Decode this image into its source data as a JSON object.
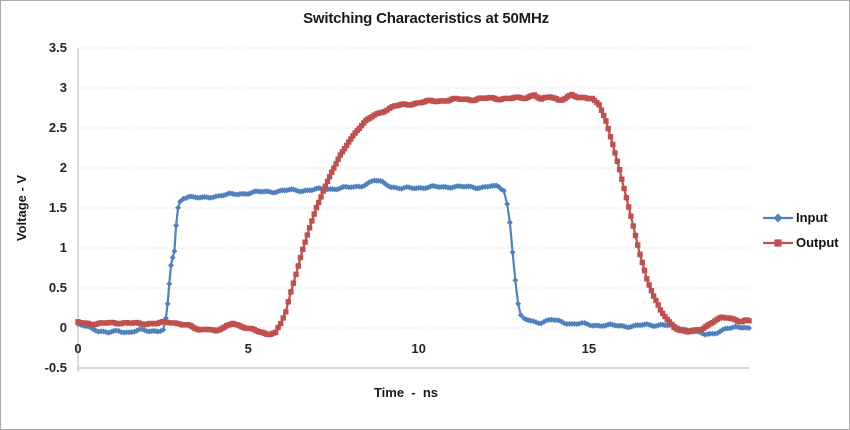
{
  "title": "Switching Characteristics at 50MHz",
  "colors": {
    "input_series": "#4F81BD",
    "output_series": "#C0504D",
    "gridline": "#dcdcdc",
    "axis_line": "#c2c2c2",
    "text": "#1a1a1a",
    "frame_border": "#ababab",
    "background": "#ffffff"
  },
  "legend": {
    "position": "right",
    "entries": [
      {
        "label": "Input",
        "color": "#4F81BD",
        "marker": "diamond"
      },
      {
        "label": "Output",
        "color": "#C0504D",
        "marker": "square"
      }
    ]
  },
  "chart_data": {
    "type": "line",
    "title": "Switching Characteristics at 50MHz",
    "xlabel": "Time  -  ns",
    "ylabel": "Voltage - V",
    "xlim": [
      0,
      19.7
    ],
    "ylim": [
      -0.5,
      3.5
    ],
    "x_ticks": [
      0,
      5,
      10,
      15
    ],
    "y_ticks": [
      3.5,
      3,
      2.5,
      2,
      1.5,
      1,
      0.5,
      0,
      -0.5
    ],
    "grid": "horizontal-dotted",
    "legend_position": "right",
    "series": [
      {
        "name": "Input",
        "color": "#4F81BD",
        "marker": "diamond",
        "points": [
          [
            0.0,
            0.04
          ],
          [
            0.3,
            0.01
          ],
          [
            0.6,
            -0.03
          ],
          [
            0.9,
            -0.06
          ],
          [
            1.2,
            -0.04
          ],
          [
            1.5,
            -0.05
          ],
          [
            1.8,
            -0.03
          ],
          [
            2.1,
            -0.04
          ],
          [
            2.35,
            -0.03
          ],
          [
            2.5,
            -0.02
          ],
          [
            2.58,
            0.12
          ],
          [
            2.63,
            0.3
          ],
          [
            2.68,
            0.55
          ],
          [
            2.73,
            0.78
          ],
          [
            2.78,
            0.88
          ],
          [
            2.83,
            0.96
          ],
          [
            2.88,
            1.28
          ],
          [
            2.94,
            1.5
          ],
          [
            3.0,
            1.58
          ],
          [
            3.1,
            1.63
          ],
          [
            3.25,
            1.65
          ],
          [
            3.45,
            1.63
          ],
          [
            3.65,
            1.62
          ],
          [
            3.9,
            1.64
          ],
          [
            4.2,
            1.66
          ],
          [
            4.6,
            1.67
          ],
          [
            5.0,
            1.69
          ],
          [
            5.4,
            1.7
          ],
          [
            5.8,
            1.71
          ],
          [
            6.2,
            1.72
          ],
          [
            6.6,
            1.72
          ],
          [
            7.0,
            1.73
          ],
          [
            7.4,
            1.74
          ],
          [
            7.8,
            1.75
          ],
          [
            8.1,
            1.76
          ],
          [
            8.4,
            1.79
          ],
          [
            8.7,
            1.84
          ],
          [
            8.95,
            1.82
          ],
          [
            9.2,
            1.77
          ],
          [
            9.5,
            1.74
          ],
          [
            9.8,
            1.75
          ],
          [
            10.2,
            1.76
          ],
          [
            10.6,
            1.76
          ],
          [
            11.0,
            1.77
          ],
          [
            11.4,
            1.76
          ],
          [
            11.8,
            1.76
          ],
          [
            12.1,
            1.77
          ],
          [
            12.35,
            1.76
          ],
          [
            12.5,
            1.72
          ],
          [
            12.6,
            1.55
          ],
          [
            12.68,
            1.32
          ],
          [
            12.76,
            0.95
          ],
          [
            12.84,
            0.6
          ],
          [
            12.92,
            0.3
          ],
          [
            13.0,
            0.15
          ],
          [
            13.1,
            0.11
          ],
          [
            13.3,
            0.09
          ],
          [
            13.6,
            0.07
          ],
          [
            13.9,
            0.1
          ],
          [
            14.2,
            0.08
          ],
          [
            14.5,
            0.05
          ],
          [
            14.8,
            0.05
          ],
          [
            15.1,
            0.04
          ],
          [
            15.5,
            0.03
          ],
          [
            15.9,
            0.03
          ],
          [
            16.3,
            0.02
          ],
          [
            16.7,
            0.04
          ],
          [
            17.1,
            0.04
          ],
          [
            17.5,
            0.02
          ],
          [
            17.8,
            -0.01
          ],
          [
            18.1,
            -0.05
          ],
          [
            18.4,
            -0.08
          ],
          [
            18.7,
            -0.06
          ],
          [
            19.0,
            -0.02
          ],
          [
            19.3,
            0.01
          ],
          [
            19.55,
            0.02
          ],
          [
            19.7,
            0.0
          ]
        ]
      },
      {
        "name": "Output",
        "color": "#C0504D",
        "marker": "square",
        "points": [
          [
            0.0,
            0.07
          ],
          [
            0.3,
            0.06
          ],
          [
            0.6,
            0.05
          ],
          [
            0.9,
            0.06
          ],
          [
            1.2,
            0.07
          ],
          [
            1.5,
            0.06
          ],
          [
            1.8,
            0.05
          ],
          [
            2.1,
            0.06
          ],
          [
            2.4,
            0.06
          ],
          [
            2.7,
            0.07
          ],
          [
            3.0,
            0.06
          ],
          [
            3.3,
            0.02
          ],
          [
            3.55,
            -0.03
          ],
          [
            3.8,
            0.0
          ],
          [
            4.05,
            -0.04
          ],
          [
            4.3,
            0.0
          ],
          [
            4.55,
            0.07
          ],
          [
            4.8,
            0.02
          ],
          [
            5.05,
            -0.02
          ],
          [
            5.3,
            -0.04
          ],
          [
            5.55,
            -0.07
          ],
          [
            5.8,
            -0.06
          ],
          [
            5.95,
            0.05
          ],
          [
            6.1,
            0.2
          ],
          [
            6.25,
            0.45
          ],
          [
            6.4,
            0.68
          ],
          [
            6.6,
            0.98
          ],
          [
            6.8,
            1.25
          ],
          [
            7.0,
            1.5
          ],
          [
            7.2,
            1.72
          ],
          [
            7.45,
            1.95
          ],
          [
            7.7,
            2.15
          ],
          [
            7.95,
            2.33
          ],
          [
            8.2,
            2.48
          ],
          [
            8.45,
            2.58
          ],
          [
            8.7,
            2.66
          ],
          [
            9.0,
            2.72
          ],
          [
            9.3,
            2.77
          ],
          [
            9.7,
            2.8
          ],
          [
            10.1,
            2.82
          ],
          [
            10.5,
            2.84
          ],
          [
            10.9,
            2.85
          ],
          [
            11.3,
            2.86
          ],
          [
            11.7,
            2.86
          ],
          [
            12.1,
            2.87
          ],
          [
            12.5,
            2.87
          ],
          [
            12.9,
            2.87
          ],
          [
            13.15,
            2.88
          ],
          [
            13.4,
            2.92
          ],
          [
            13.6,
            2.85
          ],
          [
            13.85,
            2.89
          ],
          [
            14.1,
            2.86
          ],
          [
            14.3,
            2.87
          ],
          [
            14.5,
            2.91
          ],
          [
            14.7,
            2.87
          ],
          [
            14.9,
            2.89
          ],
          [
            15.1,
            2.87
          ],
          [
            15.3,
            2.79
          ],
          [
            15.5,
            2.58
          ],
          [
            15.7,
            2.3
          ],
          [
            15.9,
            1.98
          ],
          [
            16.1,
            1.63
          ],
          [
            16.3,
            1.27
          ],
          [
            16.5,
            0.92
          ],
          [
            16.7,
            0.62
          ],
          [
            16.9,
            0.4
          ],
          [
            17.1,
            0.22
          ],
          [
            17.3,
            0.1
          ],
          [
            17.5,
            0.02
          ],
          [
            17.7,
            -0.03
          ],
          [
            17.9,
            -0.05
          ],
          [
            18.1,
            -0.04
          ],
          [
            18.3,
            -0.01
          ],
          [
            18.5,
            0.04
          ],
          [
            18.7,
            0.09
          ],
          [
            18.9,
            0.12
          ],
          [
            19.1,
            0.13
          ],
          [
            19.3,
            0.11
          ],
          [
            19.5,
            0.08
          ],
          [
            19.7,
            0.09
          ]
        ]
      }
    ]
  }
}
